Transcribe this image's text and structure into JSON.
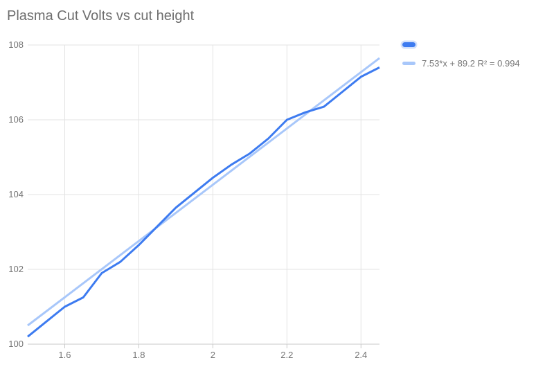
{
  "chart": {
    "title": "Plasma Cut Volts vs cut height",
    "legend": [
      {
        "label": "",
        "swatch": "series"
      },
      {
        "label": "7.53*x + 89.2 R² = 0.994",
        "swatch": "trend"
      }
    ]
  },
  "colors": {
    "series": "#3d7bf0",
    "trend": "#a8c7fa",
    "grid": "#e3e3e3",
    "axis": "#c9c9c9",
    "tick_text": "#757575",
    "title_text": "#6e6e6e",
    "background": "#ffffff"
  },
  "chart_data": {
    "type": "line",
    "title": "Plasma Cut Volts vs cut height",
    "xlabel": "",
    "ylabel": "",
    "xlim": [
      1.5,
      2.45
    ],
    "ylim": [
      100,
      108
    ],
    "x_ticks": [
      1.6,
      1.8,
      2,
      2.2,
      2.4
    ],
    "y_ticks": [
      100,
      102,
      104,
      106,
      108
    ],
    "grid": true,
    "legend_position": "top-right",
    "series": [
      {
        "id": "volts-vs-cut-height",
        "legend_label": "",
        "color": "#3d7bf0",
        "points": [
          [
            1.5,
            100.2
          ],
          [
            1.55,
            100.6
          ],
          [
            1.6,
            101.0
          ],
          [
            1.65,
            101.25
          ],
          [
            1.7,
            101.9
          ],
          [
            1.75,
            102.2
          ],
          [
            1.8,
            102.65
          ],
          [
            1.85,
            103.15
          ],
          [
            1.9,
            103.65
          ],
          [
            1.95,
            104.05
          ],
          [
            2.0,
            104.45
          ],
          [
            2.05,
            104.8
          ],
          [
            2.1,
            105.1
          ],
          [
            2.15,
            105.5
          ],
          [
            2.2,
            106.0
          ],
          [
            2.25,
            106.2
          ],
          [
            2.3,
            106.35
          ],
          [
            2.35,
            106.75
          ],
          [
            2.4,
            107.15
          ],
          [
            2.45,
            107.4
          ]
        ]
      },
      {
        "id": "trendline",
        "legend_label": "7.53*x + 89.2 R² = 0.994",
        "color": "#a8c7fa",
        "slope": 7.53,
        "intercept": 89.2,
        "r2": 0.994,
        "points": [
          [
            1.5,
            100.5
          ],
          [
            2.45,
            107.65
          ]
        ]
      }
    ]
  }
}
